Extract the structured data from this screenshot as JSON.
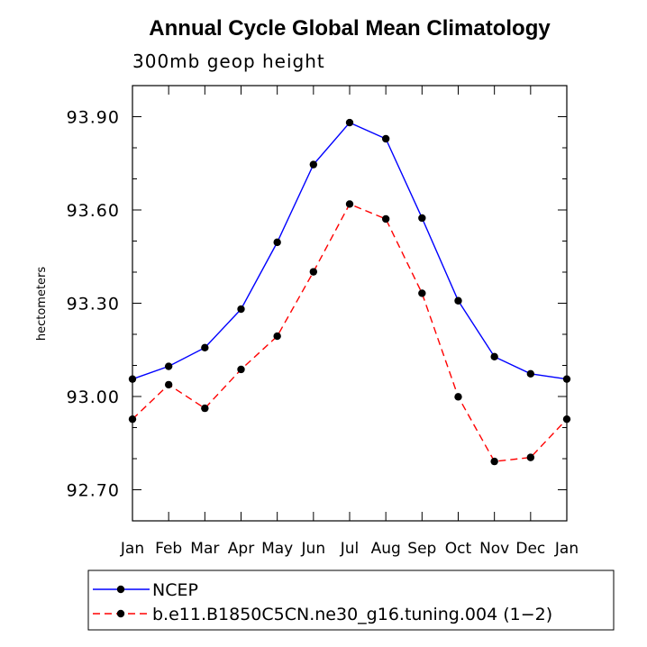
{
  "chart_data": {
    "type": "line",
    "title": "Annual Cycle Global Mean Climatology",
    "subtitle": "300mb geop height",
    "xlabel": "",
    "ylabel": "hectometers",
    "categories": [
      "Jan",
      "Feb",
      "Mar",
      "Apr",
      "May",
      "Jun",
      "Jul",
      "Aug",
      "Sep",
      "Oct",
      "Nov",
      "Dec",
      "Jan"
    ],
    "yticks": [
      "93.90",
      "93.60",
      "93.30",
      "93.00",
      "92.70"
    ],
    "ytick_values": [
      93.9,
      93.6,
      93.3,
      93.0,
      92.7
    ],
    "ylim": [
      92.6,
      94.0
    ],
    "series": [
      {
        "name": "NCEP",
        "color": "#0000ff",
        "dash": "solid",
        "values": [
          93.056,
          93.097,
          93.157,
          93.281,
          93.496,
          93.746,
          93.881,
          93.829,
          93.574,
          93.308,
          93.128,
          93.073,
          93.056
        ]
      },
      {
        "name": "b.e11.B1850C5CN.ne30_g16.tuning.004 (1−2)",
        "color": "#ff0000",
        "dash": "dashed",
        "values": [
          92.927,
          93.038,
          92.962,
          93.087,
          93.194,
          93.401,
          93.619,
          93.571,
          93.332,
          92.999,
          92.791,
          92.804,
          92.927
        ]
      }
    ]
  }
}
